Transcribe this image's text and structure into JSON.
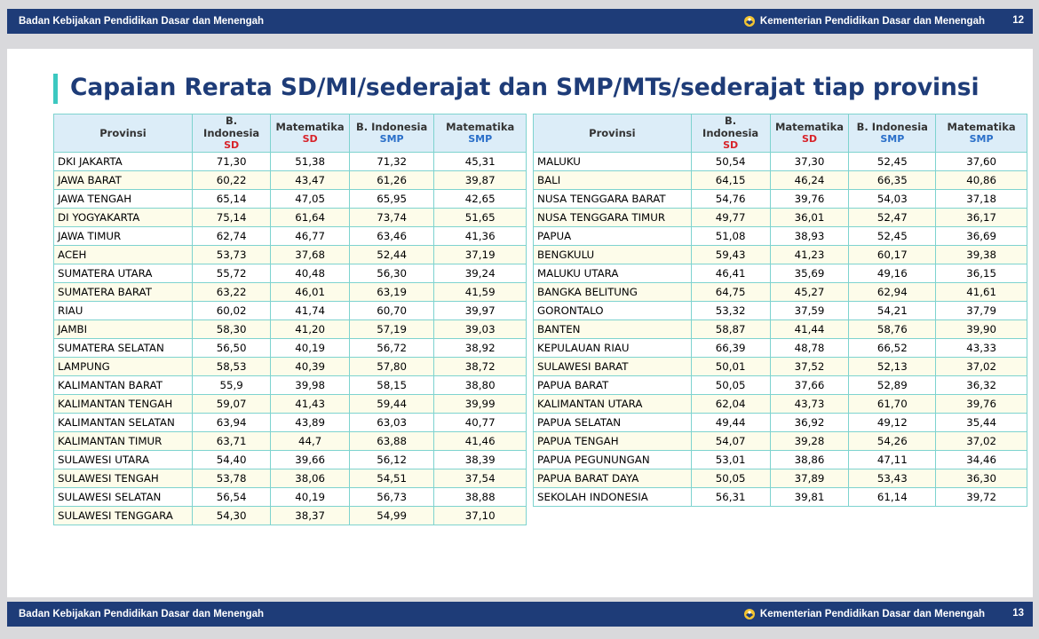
{
  "header": {
    "left_text": "Badan Kebijakan Pendidikan Dasar dan Menengah",
    "right_text": "Kementerian Pendidikan Dasar dan Menengah",
    "page": "12"
  },
  "footer": {
    "left_text": "Badan Kebijakan Pendidikan Dasar dan Menengah",
    "right_text": "Kementerian Pendidikan Dasar dan Menengah",
    "page": "13"
  },
  "title": "Capaian Rerata SD/MI/sederajat dan SMP/MTs/sederajat tiap provinsi",
  "columns": {
    "provinsi": "Provinsi",
    "c1": "B. Indonesia",
    "c1_sub": "SD",
    "c2": "Matematika",
    "c2_sub": "SD",
    "c3": "B. Indonesia",
    "c3_sub": "SMP",
    "c4": "Matematika",
    "c4_sub": "SMP"
  },
  "colors": {
    "bar": "#1e3c78",
    "accent": "#3cc8c0",
    "sd": "#d8232a",
    "smp": "#2a6fc9"
  },
  "left_rows": [
    [
      "DKI JAKARTA",
      "71,30",
      "51,38",
      "71,32",
      "45,31"
    ],
    [
      "JAWA BARAT",
      "60,22",
      "43,47",
      "61,26",
      "39,87"
    ],
    [
      "JAWA TENGAH",
      "65,14",
      "47,05",
      "65,95",
      "42,65"
    ],
    [
      "DI YOGYAKARTA",
      "75,14",
      "61,64",
      "73,74",
      "51,65"
    ],
    [
      "JAWA TIMUR",
      "62,74",
      "46,77",
      "63,46",
      "41,36"
    ],
    [
      "ACEH",
      "53,73",
      "37,68",
      "52,44",
      "37,19"
    ],
    [
      "SUMATERA UTARA",
      "55,72",
      "40,48",
      "56,30",
      "39,24"
    ],
    [
      "SUMATERA BARAT",
      "63,22",
      "46,01",
      "63,19",
      "41,59"
    ],
    [
      "RIAU",
      "60,02",
      "41,74",
      "60,70",
      "39,97"
    ],
    [
      "JAMBI",
      "58,30",
      "41,20",
      "57,19",
      "39,03"
    ],
    [
      "SUMATERA SELATAN",
      "56,50",
      "40,19",
      "56,72",
      "38,92"
    ],
    [
      "LAMPUNG",
      "58,53",
      "40,39",
      "57,80",
      "38,72"
    ],
    [
      "KALIMANTAN BARAT",
      "55,9",
      "39,98",
      "58,15",
      "38,80"
    ],
    [
      "KALIMANTAN TENGAH",
      "59,07",
      "41,43",
      "59,44",
      "39,99"
    ],
    [
      "KALIMANTAN SELATAN",
      "63,94",
      "43,89",
      "63,03",
      "40,77"
    ],
    [
      "KALIMANTAN TIMUR",
      "63,71",
      "44,7",
      "63,88",
      "41,46"
    ],
    [
      "SULAWESI UTARA",
      "54,40",
      "39,66",
      "56,12",
      "38,39"
    ],
    [
      "SULAWESI TENGAH",
      "53,78",
      "38,06",
      "54,51",
      "37,54"
    ],
    [
      "SULAWESI SELATAN",
      "56,54",
      "40,19",
      "56,73",
      "38,88"
    ],
    [
      "SULAWESI TENGGARA",
      "54,30",
      "38,37",
      "54,99",
      "37,10"
    ]
  ],
  "right_rows": [
    [
      "MALUKU",
      "50,54",
      "37,30",
      "52,45",
      "37,60"
    ],
    [
      "BALI",
      "64,15",
      "46,24",
      "66,35",
      "40,86"
    ],
    [
      "NUSA TENGGARA BARAT",
      "54,76",
      "39,76",
      "54,03",
      "37,18"
    ],
    [
      "NUSA TENGGARA TIMUR",
      "49,77",
      "36,01",
      "52,47",
      "36,17"
    ],
    [
      "PAPUA",
      "51,08",
      "38,93",
      "52,45",
      "36,69"
    ],
    [
      "BENGKULU",
      "59,43",
      "41,23",
      "60,17",
      "39,38"
    ],
    [
      "MALUKU UTARA",
      "46,41",
      "35,69",
      "49,16",
      "36,15"
    ],
    [
      "BANGKA BELITUNG",
      "64,75",
      "45,27",
      "62,94",
      "41,61"
    ],
    [
      "GORONTALO",
      "53,32",
      "37,59",
      "54,21",
      "37,79"
    ],
    [
      "BANTEN",
      "58,87",
      "41,44",
      "58,76",
      "39,90"
    ],
    [
      "KEPULAUAN RIAU",
      "66,39",
      "48,78",
      "66,52",
      "43,33"
    ],
    [
      "SULAWESI BARAT",
      "50,01",
      "37,52",
      "52,13",
      "37,02"
    ],
    [
      "PAPUA BARAT",
      "50,05",
      "37,66",
      "52,89",
      "36,32"
    ],
    [
      "KALIMANTAN UTARA",
      "62,04",
      "43,73",
      "61,70",
      "39,76"
    ],
    [
      "PAPUA SELATAN",
      "49,44",
      "36,92",
      "49,12",
      "35,44"
    ],
    [
      "PAPUA TENGAH",
      "54,07",
      "39,28",
      "54,26",
      "37,02"
    ],
    [
      "PAPUA PEGUNUNGAN",
      "53,01",
      "38,86",
      "47,11",
      "34,46"
    ],
    [
      "PAPUA BARAT DAYA",
      "50,05",
      "37,89",
      "53,43",
      "36,30"
    ],
    [
      "SEKOLAH INDONESIA",
      "56,31",
      "39,81",
      "61,14",
      "39,72"
    ]
  ]
}
